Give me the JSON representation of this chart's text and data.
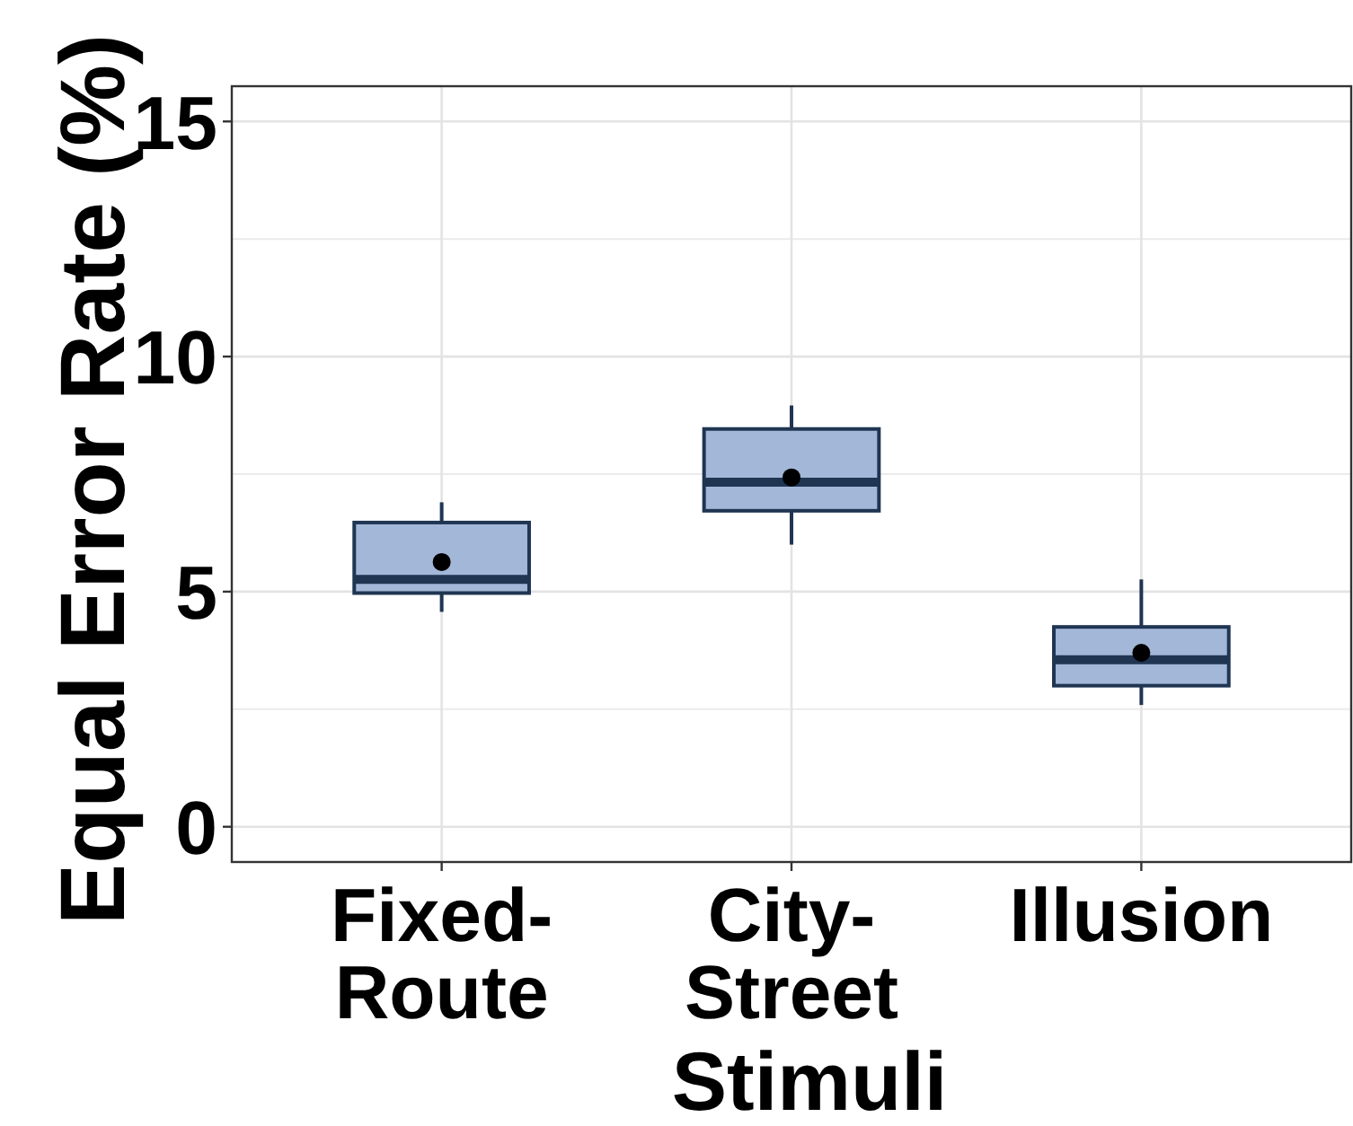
{
  "chart_data": {
    "type": "box",
    "xlabel": "Stimuli",
    "ylabel": "Equal Error Rate (%)",
    "categories": [
      "Fixed-\nRoute",
      "City-\nStreet",
      "Illusion"
    ],
    "series": [
      {
        "color": "#a3b8d8",
        "boxes": [
          {
            "low": 4.57,
            "q1": 4.97,
            "median": 5.26,
            "q3": 6.47,
            "high": 6.9,
            "mean": 5.63
          },
          {
            "low": 6.0,
            "q1": 6.72,
            "median": 7.33,
            "q3": 8.46,
            "high": 8.96,
            "mean": 7.43
          },
          {
            "low": 2.59,
            "q1": 3.0,
            "median": 3.55,
            "q3": 4.25,
            "high": 5.26,
            "mean": 3.7
          }
        ]
      }
    ],
    "ylim": [
      -0.75,
      15.75
    ],
    "yticks": [
      0,
      5,
      10,
      15
    ],
    "grid": true
  }
}
